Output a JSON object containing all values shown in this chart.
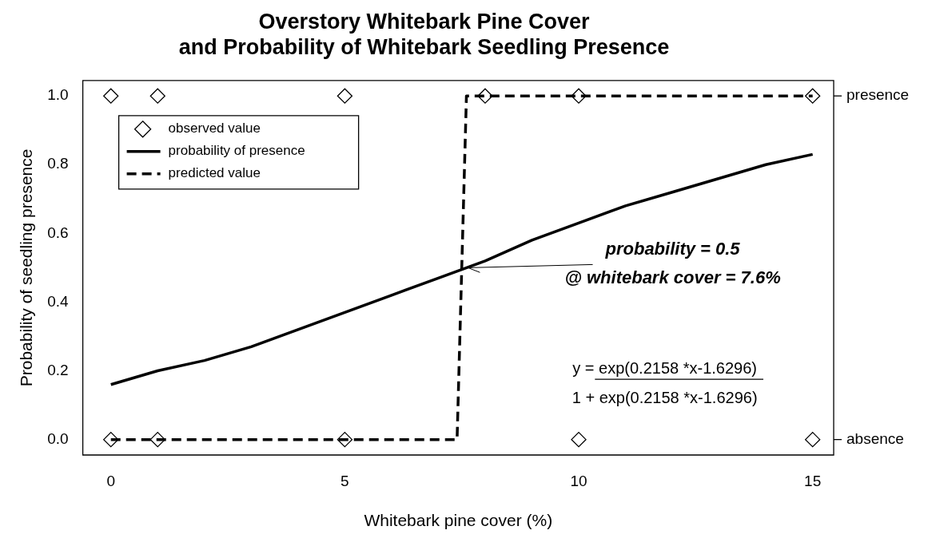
{
  "chart_data": {
    "type": "line",
    "title": "Overstory Whitebark Pine Cover\nand Probability of Whitebark Seedling Presence",
    "xlabel": "Whitebark pine cover (%)",
    "ylabel": "Probability of seedling presence",
    "xlim": [
      -0.6,
      15.45
    ],
    "xticks": [
      0,
      5,
      10,
      15
    ],
    "ylim": [
      -0.045,
      1.045
    ],
    "yticks": [
      {
        "value": 0,
        "label": "0.0"
      },
      {
        "value": 0.2,
        "label": "0.2"
      },
      {
        "value": 0.4,
        "label": "0.4"
      },
      {
        "value": 0.6,
        "label": "0.6"
      },
      {
        "value": 0.8,
        "label": "0.8"
      },
      {
        "value": 1,
        "label": "1.0"
      }
    ],
    "y2_categories": [
      "presence",
      "absence"
    ],
    "grid": false,
    "legend": "top left",
    "series": [
      {
        "name": "observed value",
        "type": "scatter",
        "marker": "diamond",
        "color": "#000000",
        "x": [
          0,
          1,
          5,
          8,
          10,
          15,
          0,
          1,
          5,
          10,
          15
        ],
        "values": [
          1,
          1,
          1,
          1,
          1,
          1,
          0,
          0,
          0,
          0,
          0
        ]
      },
      {
        "name": "probability of presence",
        "marker": "none",
        "line_style": "solid",
        "color": "#000000",
        "x": [
          0,
          1,
          2,
          3,
          4,
          5,
          6,
          7,
          8,
          9,
          10,
          11,
          12,
          13,
          14,
          15
        ],
        "values": [
          0.16,
          0.2,
          0.23,
          0.27,
          0.32,
          0.37,
          0.42,
          0.47,
          0.52,
          0.58,
          0.63,
          0.68,
          0.72,
          0.76,
          0.8,
          0.83
        ]
      },
      {
        "name": "predicted value",
        "marker": "none",
        "line_style": "dashed",
        "color": "#000000",
        "x": [
          0,
          7.4,
          7.6,
          15
        ],
        "values": [
          0,
          0,
          1,
          1
        ]
      }
    ],
    "annotations": [
      {
        "text": "probability = 0.5\n@ whitebark cover = 7.6%",
        "x": 7.6,
        "y": 0.5
      },
      "y = exp(0.2158 *x-1.6296)",
      "1 + exp(0.2158 *x-1.6296)"
    ]
  }
}
